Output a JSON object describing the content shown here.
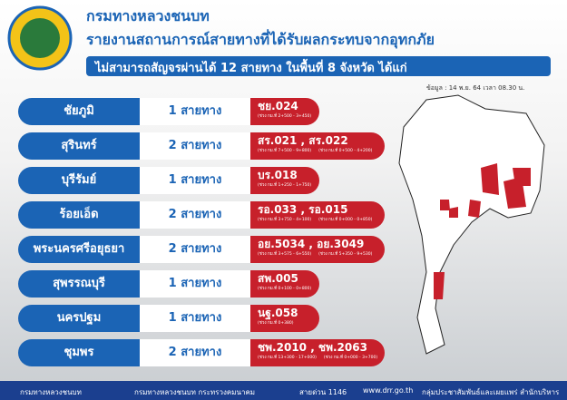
{
  "header": {
    "org": "กรมทางหลวงชนบท",
    "title": "รายงานสถานการณ์สายทางที่ได้รับผลกระทบจากอุทกภัย",
    "banner": "ไม่สามารถสัญจรผ่านได้ 12 สายทาง ในพื้นที่ 8 จังหวัด ได้แก่",
    "as_of": "ข้อมูล : 14 พ.ย. 64 เวลา 08.30 น."
  },
  "rows": [
    {
      "province": "ชัยภูมิ",
      "count": "1 สายทาง",
      "routes": "ชย.024",
      "notes": [
        "(ช่วง กม.ที่ 2+500 - 3+450)"
      ]
    },
    {
      "province": "สุรินทร์",
      "count": "2 สายทาง",
      "routes": "สร.021 , สร.022",
      "notes": [
        "(ช่วง กม.ที่ 7+500 - 9+800)",
        "(ช่วง กม.ที่ 0+500 - 4+200)"
      ]
    },
    {
      "province": "บุรีรัมย์",
      "count": "1 สายทาง",
      "routes": "บร.018",
      "notes": [
        "(ช่วง กม.ที่ 1+250 - 1+750)"
      ]
    },
    {
      "province": "ร้อยเอ็ด",
      "count": "2 สายทาง",
      "routes": "รอ.033 , รอ.015",
      "notes": [
        "(ช่วง กม.ที่ 3+750 - 4+100)",
        "(ช่วง กม.ที่ 0+000 - 0+850)"
      ]
    },
    {
      "province": "พระนครศรีอยุธยา",
      "count": "2 สายทาง",
      "routes": "อย.5034 , อย.3049",
      "notes": [
        "(ช่วง กม.ที่ 3+575 - 6+550)",
        "(ช่วง กม.ที่ 5+350 - 9+530)"
      ]
    },
    {
      "province": "สุพรรณบุรี",
      "count": "1 สายทาง",
      "routes": "สพ.005",
      "notes": [
        "(ช่วง กม.ที่ 0+100 - 0+800)"
      ]
    },
    {
      "province": "นครปฐม",
      "count": "1 สายทาง",
      "routes": "นฐ.058",
      "notes": [
        "(ช่วง กม.ที่ 0+380)"
      ]
    },
    {
      "province": "ชุมพร",
      "count": "2 สายทาง",
      "routes": "ชพ.2010 , ชพ.2063",
      "notes": [
        "(ช่วง กม.ที่ 13+300 - 17+000)",
        "(ช่วง กม.ที่ 0+000 - 3+700)"
      ]
    }
  ],
  "footer": {
    "facebook": "กรมทางหลวงชนบท",
    "youtube": "กรมทางหลวงชนบท กระทรวงคมนาคม",
    "hotline": "สายด่วน 1146",
    "web": "www.drr.go.th",
    "dept": "กลุ่มประชาสัมพันธ์และเผยแพร่ สำนักบริหารกลาง"
  }
}
